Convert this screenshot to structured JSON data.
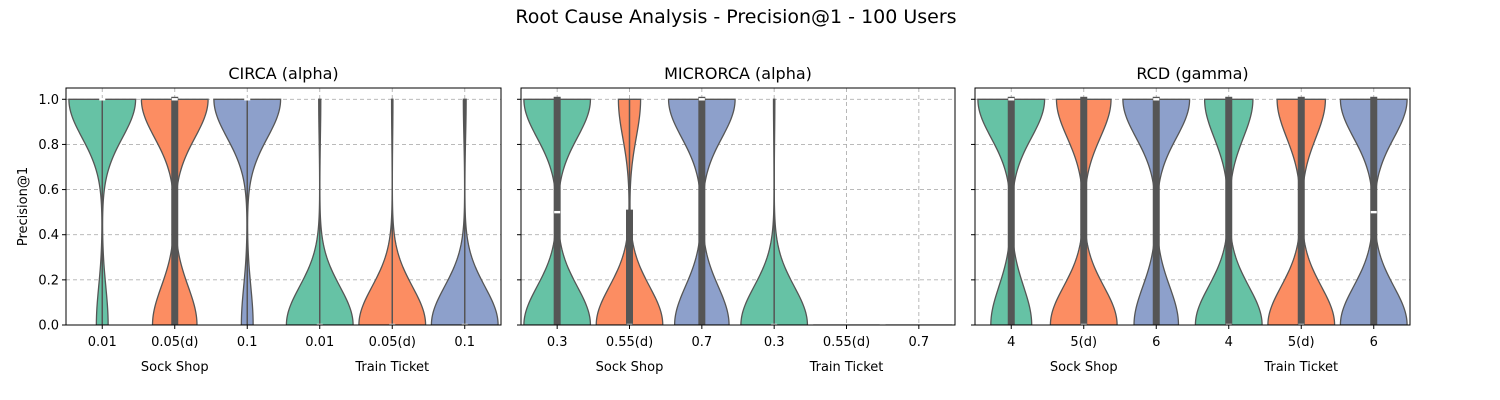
{
  "title": "Root Cause Analysis - Precision@1 - 100 Users",
  "colors": {
    "green": "#66c2a5",
    "orange": "#fc8d62",
    "blue": "#8da0cb"
  },
  "chart_data": [
    {
      "type": "violin",
      "title": "CIRCA (alpha)",
      "ylabel": "Precision@1",
      "ylim": [
        0,
        1.05
      ],
      "yticks": [
        "0.0",
        "0.2",
        "0.4",
        "0.6",
        "0.8",
        "1.0"
      ],
      "grid": true,
      "groups": [
        "Sock Shop",
        "Train Ticket"
      ],
      "categories": [
        "0.01",
        "0.05(d)",
        "0.1",
        "0.01",
        "0.05(d)",
        "0.1"
      ],
      "series": [
        {
          "color": "green",
          "mass_high": 0.85,
          "mass_low": 0.15,
          "range": [
            0,
            1
          ],
          "box": [
            1,
            1
          ],
          "median": 1
        },
        {
          "color": "orange",
          "mass_high": 0.6,
          "mass_low": 0.4,
          "range": [
            0,
            1
          ],
          "box": [
            0,
            1
          ],
          "median": 1
        },
        {
          "color": "blue",
          "mass_high": 0.85,
          "mass_low": 0.15,
          "range": [
            0,
            1
          ],
          "box": [
            1,
            1
          ],
          "median": 1
        },
        {
          "color": "green",
          "mass_high": 0.03,
          "mass_low": 0.97,
          "range": [
            0,
            1
          ],
          "box": [
            0,
            0
          ],
          "median": 0
        },
        {
          "color": "orange",
          "mass_high": 0.02,
          "mass_low": 0.98,
          "range": [
            0,
            1
          ],
          "box": [
            0,
            0
          ],
          "median": 0
        },
        {
          "color": "blue",
          "mass_high": 0.04,
          "mass_low": 0.96,
          "range": [
            0,
            1
          ],
          "box": [
            0,
            0
          ],
          "median": 0
        }
      ]
    },
    {
      "type": "violin",
      "title": "MICRORCA (alpha)",
      "ylim": [
        0,
        1.05
      ],
      "grid": true,
      "groups": [
        "Sock Shop",
        "Train Ticket"
      ],
      "categories": [
        "0.3",
        "0.55(d)",
        "0.7",
        "0.3",
        "0.55(d)",
        "0.7"
      ],
      "series": [
        {
          "color": "green",
          "mass_high": 0.5,
          "mass_low": 0.5,
          "range": [
            0,
            1
          ],
          "box": [
            0,
            1
          ],
          "median": 0.5
        },
        {
          "color": "orange",
          "mass_high": 0.25,
          "mass_low": 0.75,
          "range": [
            0,
            1
          ],
          "box": [
            0,
            0.5
          ],
          "median": 0
        },
        {
          "color": "blue",
          "mass_high": 0.55,
          "mass_low": 0.45,
          "range": [
            0,
            1
          ],
          "box": [
            0,
            1
          ],
          "median": 1
        },
        {
          "color": "green",
          "mass_high": 0.02,
          "mass_low": 0.98,
          "range": [
            0,
            1
          ],
          "box": [
            0,
            0
          ],
          "median": 0
        },
        {
          "color": "orange",
          "mass_high": 0,
          "mass_low": 1,
          "range": [
            0,
            0
          ],
          "box": [
            0,
            0
          ],
          "median": 0
        },
        {
          "color": "blue",
          "mass_high": 0,
          "mass_low": 1,
          "range": [
            0,
            0
          ],
          "box": [
            0,
            0
          ],
          "median": 0
        }
      ]
    },
    {
      "type": "violin",
      "title": "RCD (gamma)",
      "ylim": [
        0,
        1.05
      ],
      "grid": true,
      "groups": [
        "Sock Shop",
        "Train Ticket"
      ],
      "categories": [
        "4",
        "5(d)",
        "6",
        "4",
        "5(d)",
        "6"
      ],
      "series": [
        {
          "color": "green",
          "mass_high": 0.62,
          "mass_low": 0.38,
          "range": [
            0,
            1
          ],
          "box": [
            0,
            1
          ],
          "median": 1
        },
        {
          "color": "orange",
          "mass_high": 0.45,
          "mass_low": 0.55,
          "range": [
            0,
            1
          ],
          "box": [
            0,
            1
          ],
          "median": 0
        },
        {
          "color": "blue",
          "mass_high": 0.6,
          "mass_low": 0.4,
          "range": [
            0,
            1
          ],
          "box": [
            0,
            1
          ],
          "median": 1
        },
        {
          "color": "green",
          "mass_high": 0.42,
          "mass_low": 0.58,
          "range": [
            0,
            1
          ],
          "box": [
            0,
            1
          ],
          "median": 0
        },
        {
          "color": "orange",
          "mass_high": 0.42,
          "mass_low": 0.58,
          "range": [
            0,
            1
          ],
          "box": [
            0,
            1
          ],
          "median": 0
        },
        {
          "color": "blue",
          "mass_high": 0.5,
          "mass_low": 0.5,
          "range": [
            0,
            1
          ],
          "box": [
            0,
            1
          ],
          "median": 0.5
        }
      ]
    }
  ]
}
